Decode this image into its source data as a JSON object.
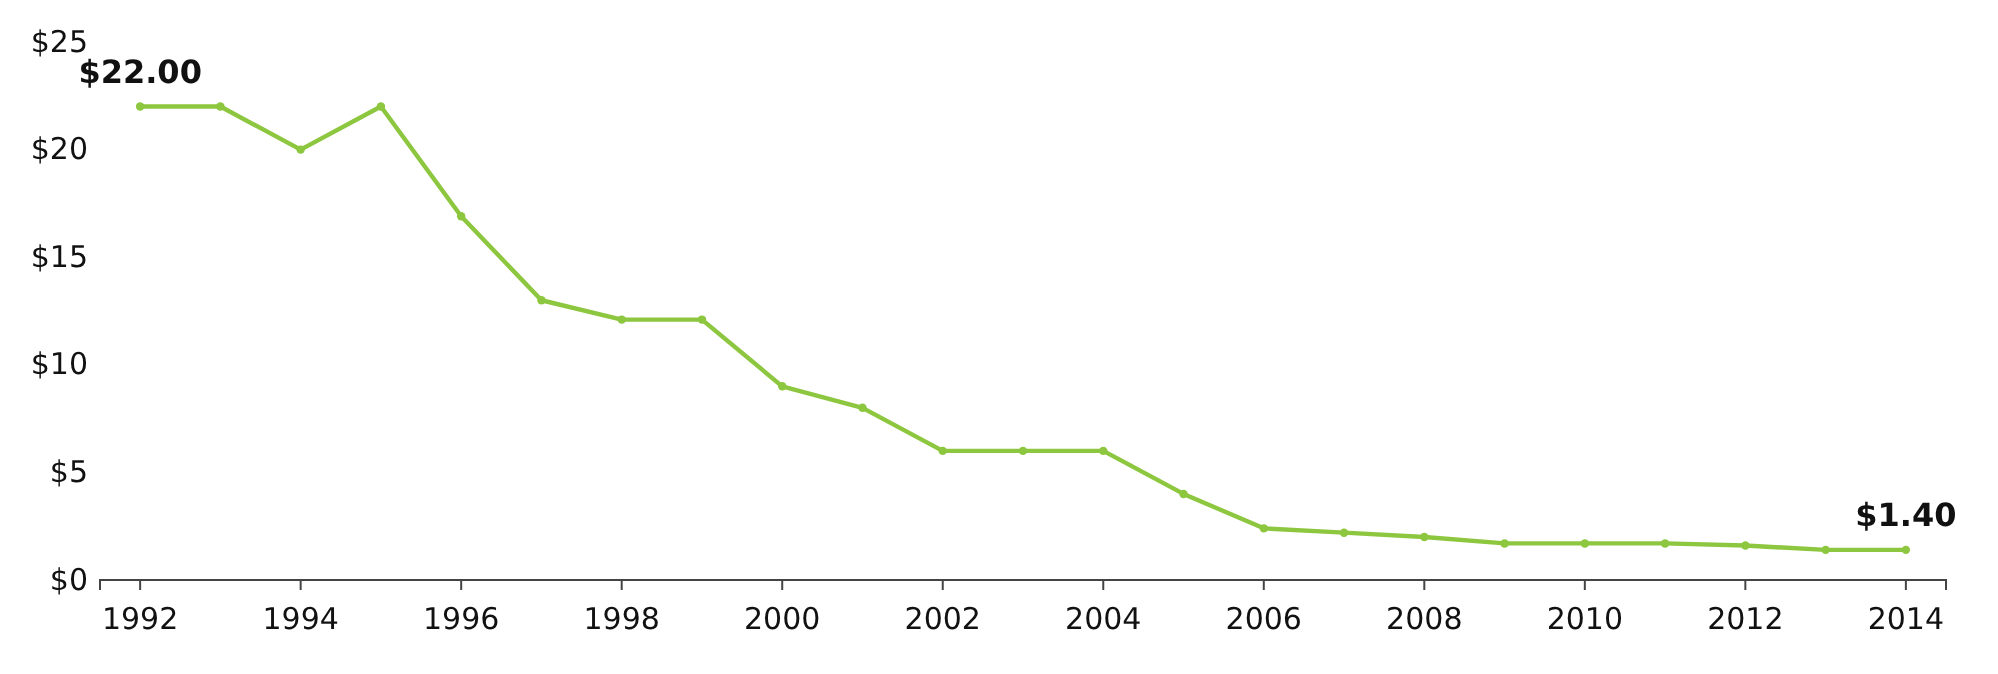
{
  "chart_data": {
    "type": "line",
    "x": [
      1992,
      1993,
      1994,
      1995,
      1996,
      1997,
      1998,
      1999,
      2000,
      2001,
      2002,
      2003,
      2004,
      2005,
      2006,
      2007,
      2008,
      2009,
      2010,
      2011,
      2012,
      2013,
      2014
    ],
    "series": [
      {
        "color": "#8dc63f",
        "values": [
          22,
          22,
          20,
          22,
          16.9,
          13,
          12.1,
          12.1,
          9,
          8,
          6,
          6,
          6,
          4,
          2.4,
          2.2,
          2,
          1.7,
          1.7,
          1.7,
          1.6,
          1.4,
          1.4
        ]
      }
    ],
    "xlim": [
      1991.5,
      2014.5
    ],
    "xticks": [
      1992,
      1994,
      1996,
      1998,
      2000,
      2002,
      2004,
      2006,
      2008,
      2010,
      2012,
      2014
    ],
    "ylim": [
      0,
      25
    ],
    "yticks": [
      {
        "value": 0,
        "label": "$0"
      },
      {
        "value": 5,
        "label": "$5"
      },
      {
        "value": 10,
        "label": "$10"
      },
      {
        "value": 15,
        "label": "$15"
      },
      {
        "value": 20,
        "label": "$20"
      },
      {
        "value": 25,
        "label": "$25"
      }
    ],
    "marker": "circle",
    "line_style": "solid",
    "grid": false,
    "annotations": [
      {
        "text": "$22.00",
        "x": 1992,
        "y": 22
      },
      {
        "text": "$1.40",
        "x": 2014,
        "y": 1.4
      }
    ]
  }
}
